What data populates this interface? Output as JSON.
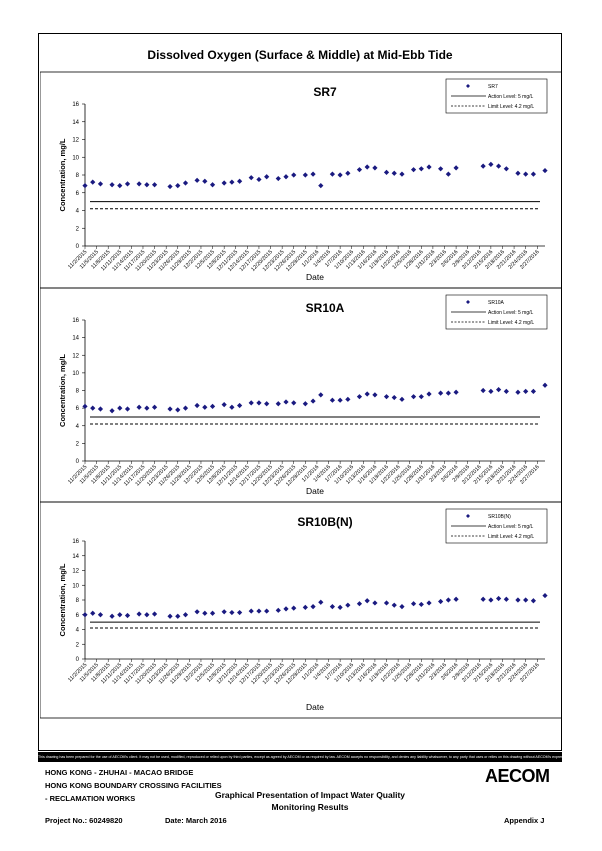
{
  "page": {
    "title": "Dissolved Oxygen (Surface & Middle) at Mid-Ebb Tide",
    "disclaimer": "This drawing has been prepared for the use of AECOM's client. It may not be used, modified, reproduced or relied upon by third parties, except as agreed by AECOM or as required by law. AECOM accepts no responsibility, and denies any liability whatsoever, to any party that uses or relies on this drawing without AECOM's express written consent.",
    "project_lines": [
      "HONG KONG - ZHUHAI - MACAO BRIDGE",
      "HONG KONG BOUNDARY CROSSING FACILITIES",
      "- RECLAMATION WORKS"
    ],
    "center_title_1": "Graphical Presentation of Impact Water Quality",
    "center_title_2": "Monitoring Results",
    "project_no": "Project No.: 60249820",
    "date": "Date: March 2016",
    "appendix": "Appendix J",
    "logo": "AECOM"
  },
  "colors": {
    "marker": "#1a1a80",
    "line": "#000000"
  },
  "chart_data": [
    {
      "type": "scatter",
      "title": "SR7",
      "xlabel": "Date",
      "ylabel": "Concentration, mg/L",
      "ylim": [
        0,
        16
      ],
      "yticks": [
        0,
        2,
        4,
        6,
        8,
        10,
        12,
        14,
        16
      ],
      "legend_position": "top-right",
      "legend": {
        "series": "SR7",
        "action": "Action Level: 5 mg/L",
        "limit": "Limit Level: 4.2 mg/L"
      },
      "action_level": 5,
      "limit_level": 4.2,
      "x_ticks": [
        "11/2/2015",
        "11/5/2015",
        "11/8/2015",
        "11/11/2015",
        "11/14/2015",
        "11/17/2015",
        "11/20/2015",
        "11/23/2015",
        "11/26/2015",
        "11/29/2015",
        "12/2/2015",
        "12/5/2015",
        "12/8/2015",
        "12/11/2015",
        "12/14/2015",
        "12/17/2015",
        "12/20/2015",
        "12/23/2015",
        "12/26/2015",
        "12/29/2015",
        "1/1/2016",
        "1/4/2016",
        "1/7/2016",
        "1/10/2016",
        "1/13/2016",
        "1/16/2016",
        "1/19/2016",
        "1/22/2016",
        "1/25/2016",
        "1/28/2016",
        "1/31/2016",
        "2/3/2016",
        "2/6/2016",
        "2/9/2016",
        "2/12/2016",
        "2/15/2016",
        "2/18/2016",
        "2/21/2016",
        "2/24/2016",
        "2/27/2016"
      ],
      "x": [
        "11/2/2015",
        "11/4/2015",
        "11/6/2015",
        "11/9/2015",
        "11/11/2015",
        "11/13/2015",
        "11/16/2015",
        "11/18/2015",
        "11/20/2015",
        "11/24/2015",
        "11/26/2015",
        "11/28/2015",
        "12/1/2015",
        "12/3/2015",
        "12/5/2015",
        "12/8/2015",
        "12/10/2015",
        "12/12/2015",
        "12/15/2015",
        "12/17/2015",
        "12/19/2015",
        "12/22/2015",
        "12/24/2015",
        "12/26/2015",
        "12/29/2015",
        "12/31/2015",
        "1/2/2016",
        "1/5/2016",
        "1/7/2016",
        "1/9/2016",
        "1/12/2016",
        "1/14/2016",
        "1/16/2016",
        "1/19/2016",
        "1/21/2016",
        "1/23/2016",
        "1/26/2016",
        "1/28/2016",
        "1/30/2016",
        "2/2/2016",
        "2/4/2016",
        "2/6/2016",
        "2/13/2016",
        "2/15/2016",
        "2/17/2016",
        "2/19/2016",
        "2/22/2016",
        "2/24/2016",
        "2/26/2016",
        "2/29/2016"
      ],
      "values": [
        6.8,
        7.2,
        7.0,
        6.9,
        6.8,
        7.0,
        7.0,
        6.9,
        6.9,
        6.7,
        6.8,
        7.1,
        7.4,
        7.3,
        6.9,
        7.1,
        7.2,
        7.3,
        7.7,
        7.5,
        7.8,
        7.6,
        7.8,
        8.0,
        8.0,
        8.1,
        6.8,
        8.1,
        8.0,
        8.2,
        8.6,
        8.9,
        8.8,
        8.3,
        8.2,
        8.1,
        8.6,
        8.7,
        8.9,
        8.7,
        8.1,
        8.8,
        9.0,
        9.2,
        9.0,
        8.7,
        8.2,
        8.1,
        8.1,
        8.5
      ]
    },
    {
      "type": "scatter",
      "title": "SR10A",
      "xlabel": "Date",
      "ylabel": "Concentration, mg/L",
      "ylim": [
        0,
        16
      ],
      "yticks": [
        0,
        2,
        4,
        6,
        8,
        10,
        12,
        14,
        16
      ],
      "legend_position": "top-right",
      "legend": {
        "series": "SR10A",
        "action": "Action Level: 5 mg/L",
        "limit": "Limit Level: 4.2 mg/L"
      },
      "action_level": 5,
      "limit_level": 4.2,
      "x_ticks": [
        "11/2/2015",
        "11/5/2015",
        "11/8/2015",
        "11/11/2015",
        "11/14/2015",
        "11/17/2015",
        "11/20/2015",
        "11/23/2015",
        "11/26/2015",
        "11/29/2015",
        "12/2/2015",
        "12/5/2015",
        "12/8/2015",
        "12/11/2015",
        "12/14/2015",
        "12/17/2015",
        "12/20/2015",
        "12/23/2015",
        "12/26/2015",
        "12/29/2015",
        "1/1/2016",
        "1/4/2016",
        "1/7/2016",
        "1/10/2016",
        "1/13/2016",
        "1/16/2016",
        "1/19/2016",
        "1/22/2016",
        "1/25/2016",
        "1/28/2016",
        "1/31/2016",
        "2/3/2016",
        "2/6/2016",
        "2/9/2016",
        "2/12/2016",
        "2/15/2016",
        "2/18/2016",
        "2/21/2016",
        "2/24/2016",
        "2/27/2016"
      ],
      "x": [
        "11/2/2015",
        "11/4/2015",
        "11/6/2015",
        "11/9/2015",
        "11/11/2015",
        "11/13/2015",
        "11/16/2015",
        "11/18/2015",
        "11/20/2015",
        "11/24/2015",
        "11/26/2015",
        "11/28/2015",
        "12/1/2015",
        "12/3/2015",
        "12/5/2015",
        "12/8/2015",
        "12/10/2015",
        "12/12/2015",
        "12/15/2015",
        "12/17/2015",
        "12/19/2015",
        "12/22/2015",
        "12/24/2015",
        "12/26/2015",
        "12/29/2015",
        "12/31/2015",
        "1/2/2016",
        "1/5/2016",
        "1/7/2016",
        "1/9/2016",
        "1/12/2016",
        "1/14/2016",
        "1/16/2016",
        "1/19/2016",
        "1/21/2016",
        "1/23/2016",
        "1/26/2016",
        "1/28/2016",
        "1/30/2016",
        "2/2/2016",
        "2/4/2016",
        "2/6/2016",
        "2/13/2016",
        "2/15/2016",
        "2/17/2016",
        "2/19/2016",
        "2/22/2016",
        "2/24/2016",
        "2/26/2016",
        "2/29/2016"
      ],
      "values": [
        6.2,
        6.0,
        5.9,
        5.7,
        6.0,
        5.9,
        6.1,
        6.0,
        6.1,
        5.9,
        5.8,
        6.0,
        6.3,
        6.1,
        6.2,
        6.4,
        6.1,
        6.3,
        6.6,
        6.6,
        6.5,
        6.5,
        6.7,
        6.6,
        6.5,
        6.8,
        7.5,
        6.9,
        6.9,
        7.0,
        7.3,
        7.6,
        7.5,
        7.3,
        7.2,
        7.0,
        7.3,
        7.3,
        7.6,
        7.7,
        7.7,
        7.8,
        8.0,
        7.9,
        8.1,
        7.9,
        7.8,
        7.9,
        7.9,
        8.6
      ]
    },
    {
      "type": "scatter",
      "title": "SR10B(N)",
      "xlabel": "Date",
      "ylabel": "Concentration, mg/L",
      "ylim": [
        0,
        16
      ],
      "yticks": [
        0,
        2,
        4,
        6,
        8,
        10,
        12,
        14,
        16
      ],
      "legend_position": "top-right",
      "legend": {
        "series": "SR10B(N)",
        "action": "Action Level: 5 mg/L",
        "limit": "Limit Level: 4.2 mg/L"
      },
      "action_level": 5,
      "limit_level": 4.2,
      "x_ticks": [
        "11/2/2015",
        "11/5/2015",
        "11/8/2015",
        "11/11/2015",
        "11/14/2015",
        "11/17/2015",
        "11/20/2015",
        "11/23/2015",
        "11/26/2015",
        "11/29/2015",
        "12/2/2015",
        "12/5/2015",
        "12/8/2015",
        "12/11/2015",
        "12/14/2015",
        "12/17/2015",
        "12/20/2015",
        "12/23/2015",
        "12/26/2015",
        "12/29/2015",
        "1/1/2016",
        "1/4/2016",
        "1/7/2016",
        "1/10/2016",
        "1/13/2016",
        "1/16/2016",
        "1/19/2016",
        "1/22/2016",
        "1/25/2016",
        "1/28/2016",
        "1/31/2016",
        "2/3/2016",
        "2/6/2016",
        "2/9/2016",
        "2/12/2016",
        "2/15/2016",
        "2/18/2016",
        "2/21/2016",
        "2/24/2016",
        "2/27/2016"
      ],
      "x": [
        "11/2/2015",
        "11/4/2015",
        "11/6/2015",
        "11/9/2015",
        "11/11/2015",
        "11/13/2015",
        "11/16/2015",
        "11/18/2015",
        "11/20/2015",
        "11/24/2015",
        "11/26/2015",
        "11/28/2015",
        "12/1/2015",
        "12/3/2015",
        "12/5/2015",
        "12/8/2015",
        "12/10/2015",
        "12/12/2015",
        "12/15/2015",
        "12/17/2015",
        "12/19/2015",
        "12/22/2015",
        "12/24/2015",
        "12/26/2015",
        "12/29/2015",
        "12/31/2015",
        "1/2/2016",
        "1/5/2016",
        "1/7/2016",
        "1/9/2016",
        "1/12/2016",
        "1/14/2016",
        "1/16/2016",
        "1/19/2016",
        "1/21/2016",
        "1/23/2016",
        "1/26/2016",
        "1/28/2016",
        "1/30/2016",
        "2/2/2016",
        "2/4/2016",
        "2/6/2016",
        "2/13/2016",
        "2/15/2016",
        "2/17/2016",
        "2/19/2016",
        "2/22/2016",
        "2/24/2016",
        "2/26/2016",
        "2/29/2016"
      ],
      "values": [
        6.0,
        6.2,
        6.0,
        5.8,
        6.0,
        5.9,
        6.1,
        6.0,
        6.1,
        5.8,
        5.8,
        6.0,
        6.4,
        6.2,
        6.2,
        6.4,
        6.3,
        6.3,
        6.5,
        6.5,
        6.5,
        6.6,
        6.8,
        6.9,
        7.0,
        7.1,
        7.7,
        7.1,
        7.0,
        7.3,
        7.5,
        7.9,
        7.6,
        7.6,
        7.3,
        7.1,
        7.5,
        7.4,
        7.6,
        7.8,
        8.0,
        8.1,
        8.1,
        8.0,
        8.2,
        8.1,
        8.0,
        8.0,
        7.9,
        8.6
      ]
    }
  ]
}
